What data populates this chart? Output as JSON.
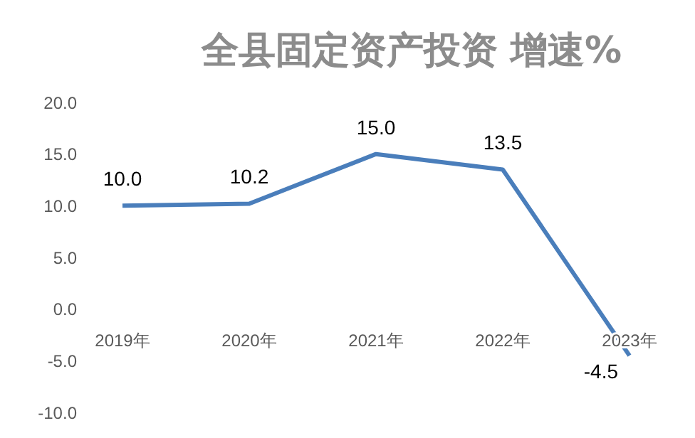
{
  "chart_data": {
    "type": "line",
    "title": "全县固定资产投资 增速%",
    "categories": [
      "2019年",
      "2020年",
      "2021年",
      "2022年",
      "2023年"
    ],
    "series": [
      {
        "color": "#4a7ebb",
        "values": [
          10.0,
          10.2,
          15.0,
          13.5,
          -4.5
        ],
        "value_labels": [
          "10.0",
          "10.2",
          "15.0",
          "13.5",
          "-4.5"
        ]
      }
    ],
    "ylim": [
      -10,
      20
    ],
    "yticks": [
      {
        "value": -10,
        "label": "-10.0"
      },
      {
        "value": -5,
        "label": "-5.0"
      },
      {
        "value": 0,
        "label": "0.0"
      },
      {
        "value": 5,
        "label": "5.0"
      },
      {
        "value": 10,
        "label": "10.0"
      },
      {
        "value": 15,
        "label": "15.0"
      },
      {
        "value": 20,
        "label": "20.0"
      }
    ],
    "grid": false,
    "legend": false,
    "marker": "none",
    "line_style": "solid"
  }
}
